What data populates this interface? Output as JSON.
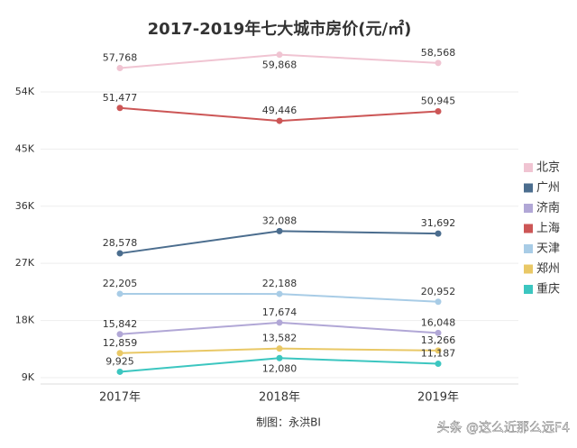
{
  "chart_data": {
    "type": "line",
    "title": "2017-2019年七大城市房价(元/㎡)",
    "categories": [
      "2017年",
      "2018年",
      "2019年"
    ],
    "ylim": [
      8000,
      61000
    ],
    "yticks": [
      {
        "value": 9000,
        "label": "9K"
      },
      {
        "value": 18000,
        "label": "18K"
      },
      {
        "value": 27000,
        "label": "27K"
      },
      {
        "value": 36000,
        "label": "36K"
      },
      {
        "value": 45000,
        "label": "45K"
      },
      {
        "value": 54000,
        "label": "54K"
      }
    ],
    "grid": true,
    "legend": "right",
    "series": [
      {
        "name": "北京",
        "color": "#f0c4d2",
        "values": [
          57768,
          59868,
          58568
        ],
        "value_labels": [
          "57,768",
          "59,868",
          "58,568"
        ]
      },
      {
        "name": "广州",
        "color": "#4b6d8e",
        "values": [
          28578,
          32088,
          31692
        ],
        "value_labels": [
          "28,578",
          "32,088",
          "31,692"
        ]
      },
      {
        "name": "济南",
        "color": "#b1a7d6",
        "values": [
          15842,
          17674,
          16048
        ],
        "value_labels": [
          "15,842",
          "17,674",
          "16,048"
        ]
      },
      {
        "name": "上海",
        "color": "#cc5656",
        "values": [
          51477,
          49446,
          50945
        ],
        "value_labels": [
          "51,477",
          "49,446",
          "50,945"
        ]
      },
      {
        "name": "天津",
        "color": "#a8cce6",
        "values": [
          22205,
          22188,
          20952
        ],
        "value_labels": [
          "22,205",
          "22,188",
          "20,952"
        ]
      },
      {
        "name": "郑州",
        "color": "#e9c866",
        "values": [
          12859,
          13582,
          13266
        ],
        "value_labels": [
          "12,859",
          "13,582",
          "13,266"
        ]
      },
      {
        "name": "重庆",
        "color": "#3cc6c0",
        "values": [
          9925,
          12080,
          11187
        ],
        "value_labels": [
          "9,925",
          "12,080",
          "11,187"
        ]
      }
    ],
    "source": "制图：永洪BI",
    "watermark": "头条 @这么近那么远F4"
  }
}
